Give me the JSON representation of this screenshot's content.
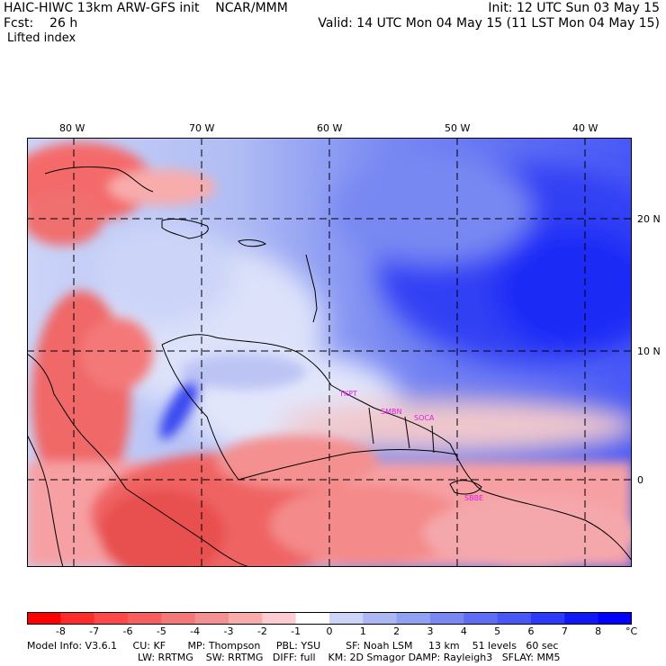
{
  "header": {
    "left1": "HAIC-HIWC 13km ARW-GFS init    NCAR/MMM",
    "left2": "Fcst:    26 h",
    "right1": "Init: 12 UTC Sun 03 May 15",
    "right2": "Valid: 14 UTC Mon 04 May 15 (11 LST Mon 04 May 15)",
    "field": "Lifted index"
  },
  "axes": {
    "lon_labels": [
      "80 W",
      "70 W",
      "60 W",
      "50 W",
      "40 W"
    ],
    "lat_labels": [
      "20 N",
      "10 N",
      "0"
    ],
    "lon_range": [
      -83.5,
      -35.5
    ],
    "lat_range": [
      -6.5,
      26.5
    ]
  },
  "stations": [
    "TKPT",
    "SMBN",
    "SOCA",
    "SBBE"
  ],
  "colorbar": {
    "ticks": [
      "-8",
      "-7",
      "-6",
      "-5",
      "-4",
      "-3",
      "-2",
      "-1",
      "0",
      "1",
      "2",
      "3",
      "4",
      "5",
      "6",
      "7",
      "8"
    ],
    "unit": "°C",
    "colors": [
      "#ff0000",
      "#ff2a2a",
      "#ff4848",
      "#f85e5e",
      "#f47878",
      "#f49090",
      "#f8acac",
      "#fcccd0",
      "#ffffff",
      "#ccd4f8",
      "#acb8f4",
      "#90a0f2",
      "#7888f2",
      "#5e6ef4",
      "#4858f6",
      "#2a3af8",
      "#1018f8",
      "#0000ff"
    ]
  },
  "footer": {
    "line1": "Model Info: V3.6.1     CU: KF       MP: Thompson     PBL: YSU        SF: Noah LSM     13 km    51 levels   60 sec",
    "line2": "LW: RRTMG    SW: RRTMG   DIFF: full    KM: 2D Smagor DAMP: Rayleigh3   SFLAY: MM5"
  }
}
